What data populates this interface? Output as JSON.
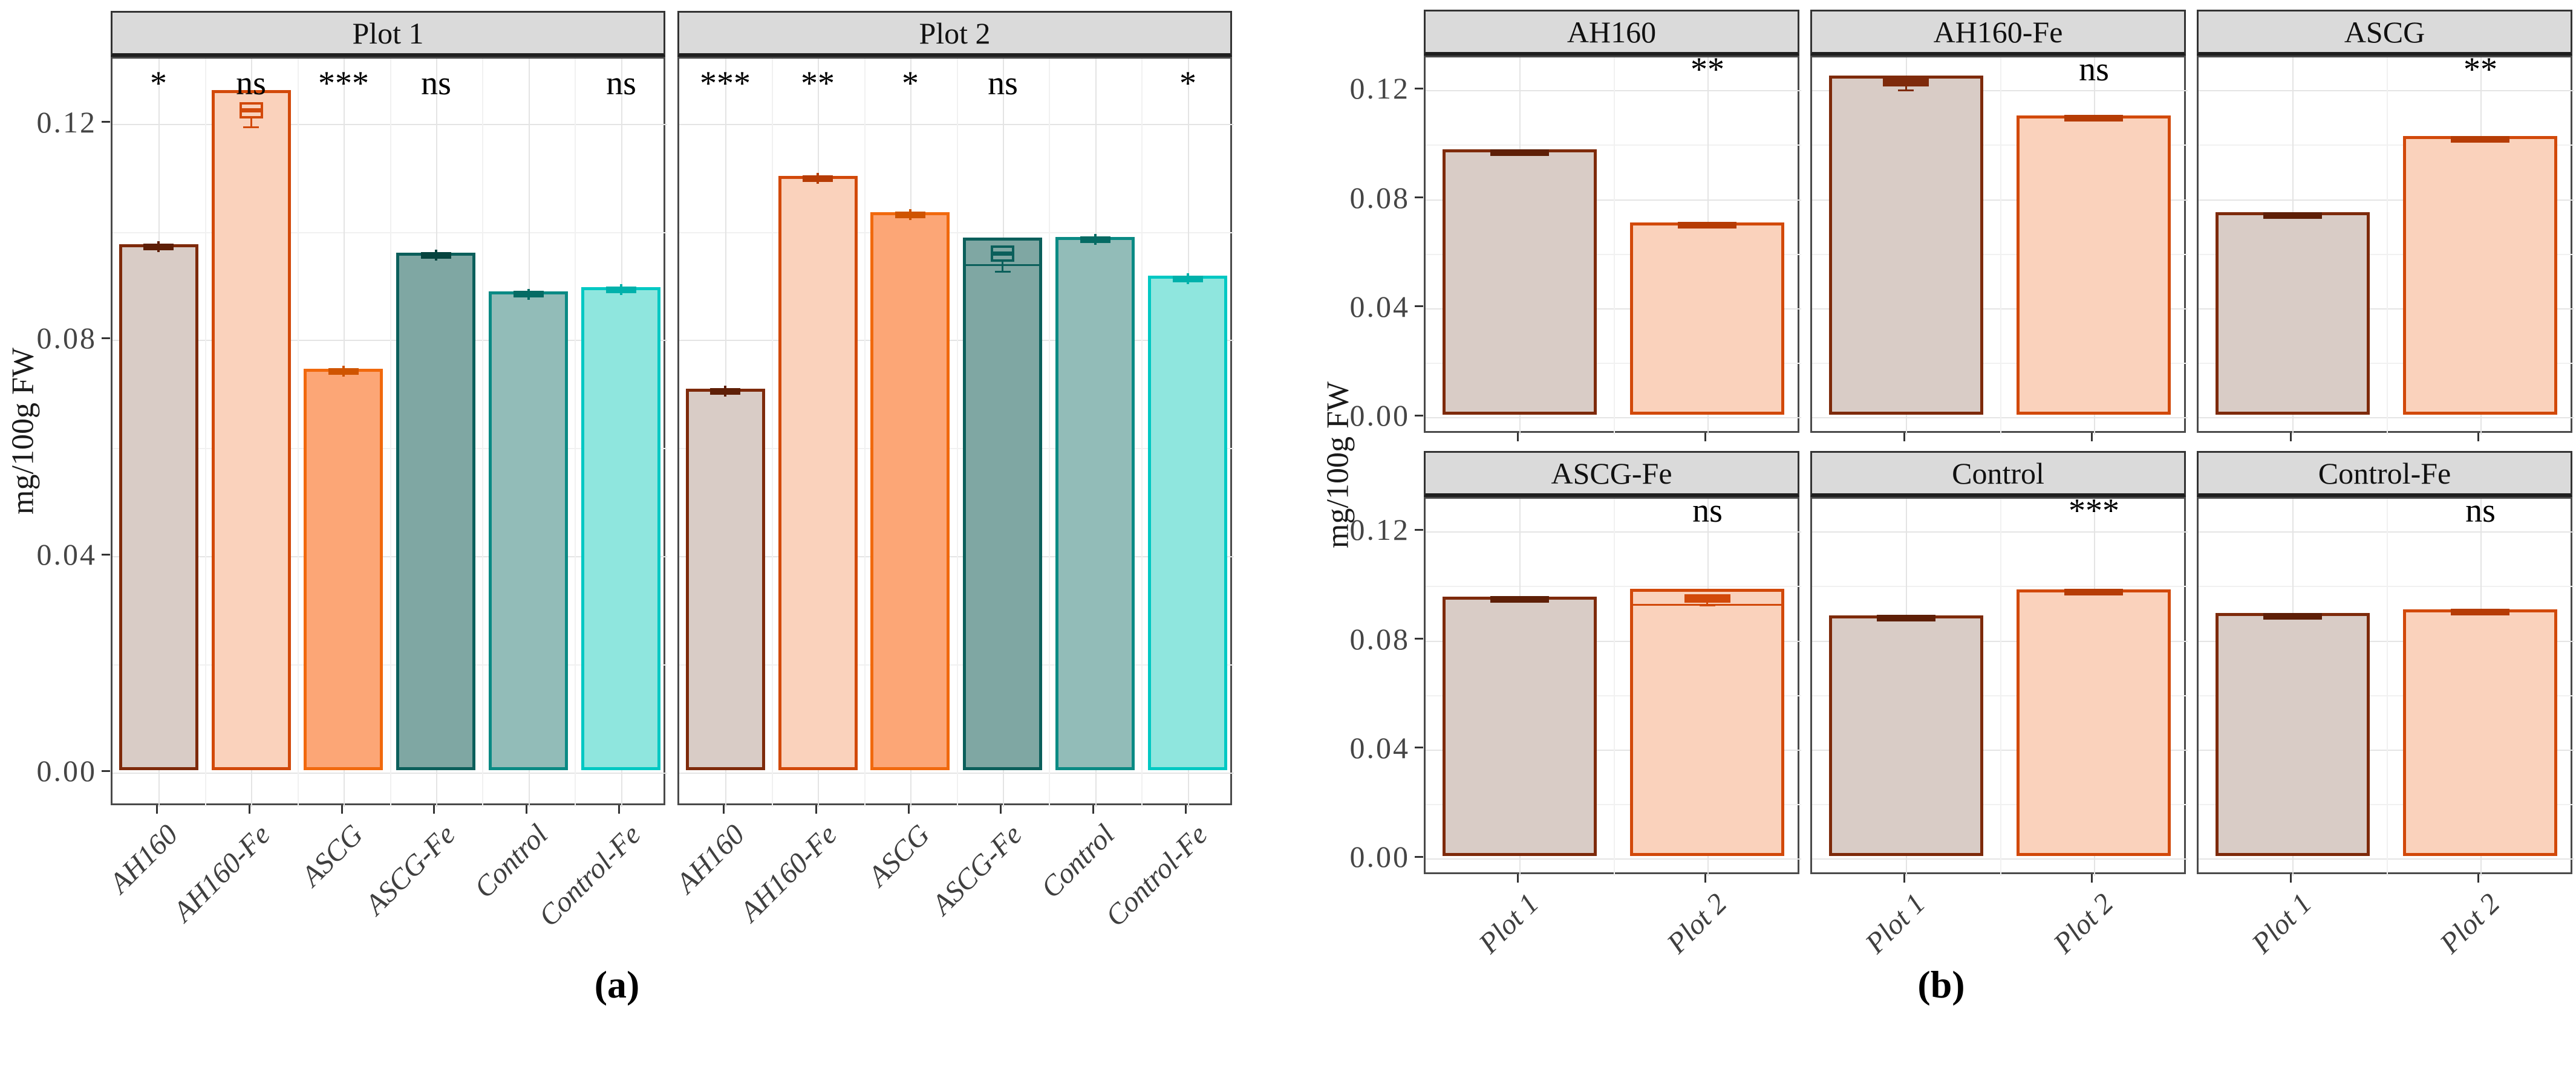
{
  "palette": {
    "AH160": {
      "fill": "#d9ccc6",
      "stroke": "#7e2a0b",
      "dark": "#5e1f07"
    },
    "AH160-Fe": {
      "fill": "#fad2bc",
      "stroke": "#d2490a",
      "dark": "#b63c05"
    },
    "ASCG": {
      "fill": "#fca676",
      "stroke": "#f1690d",
      "dark": "#cf5400"
    },
    "ASCG-Fe": {
      "fill": "#7fa7a3",
      "stroke": "#0b5f5b",
      "dark": "#07443f"
    },
    "Control": {
      "fill": "#92bcb8",
      "stroke": "#0a8a84",
      "dark": "#056b64"
    },
    "Control-Fe": {
      "fill": "#8fe6de",
      "stroke": "#00c8c3",
      "dark": "#00b1ab"
    }
  },
  "strip_bg": "#dadada",
  "grid_major": "#e4e4e4",
  "grid_minor": "#f1f1f1",
  "chart_data": [
    {
      "type": "bar",
      "title": "(a)",
      "ylabel": "mg/100g FW",
      "yticks": [
        0,
        0.04,
        0.08,
        0.12
      ],
      "ytick_labels": [
        "0.00",
        "0.04",
        "0.08",
        "0.12"
      ],
      "yminor": [
        0.02,
        0.06,
        0.1
      ],
      "ylim": [
        0,
        0.132
      ],
      "grid": true,
      "legend_position": "none",
      "facets": [
        "Plot 1",
        "Plot 2"
      ],
      "categories": [
        "AH160",
        "AH160-Fe",
        "ASCG",
        "ASCG-Fe",
        "Control",
        "Control-Fe"
      ],
      "series": [
        {
          "name": "Plot 1",
          "values": [
            0.0973,
            0.1258,
            0.0742,
            0.0957,
            0.0885,
            0.0893
          ],
          "significance": [
            "*",
            "ns",
            "***",
            "ns",
            "",
            "ns"
          ]
        },
        {
          "name": "Plot 2",
          "values": [
            0.0706,
            0.1099,
            0.1032,
            0.0985,
            0.0986,
            0.0914
          ],
          "significance": [
            "***",
            "**",
            "*",
            "ns",
            "",
            "*"
          ]
        }
      ],
      "error_bar": 0.001,
      "boxplots": [
        {
          "facet": "Plot 1",
          "category": "AH160-Fe",
          "box_low": 0.121,
          "box_high": 0.124,
          "median": 0.1225,
          "whisker_low": 0.1195
        },
        {
          "facet": "Plot 2",
          "category": "ASCG-Fe",
          "box_low": 0.0945,
          "box_high": 0.0975,
          "median": 0.096,
          "whisker_low": 0.0928,
          "wide_line": 0.094
        }
      ]
    },
    {
      "type": "bar",
      "title": "(b)",
      "ylabel": "mg/100g FW",
      "yticks": [
        0,
        0.04,
        0.08,
        0.12
      ],
      "ytick_labels": [
        "0.00",
        "0.04",
        "0.08",
        "0.12"
      ],
      "yminor": [
        0.02,
        0.06,
        0.1
      ],
      "ylim": [
        0,
        0.132
      ],
      "grid": true,
      "legend_position": "none",
      "facets": [
        "AH160",
        "AH160-Fe",
        "ASCG",
        "ASCG-Fe",
        "Control",
        "Control-Fe"
      ],
      "categories": [
        "Plot 1",
        "Plot 2"
      ],
      "values": {
        "AH160": [
          0.0973,
          0.0706
        ],
        "AH160-Fe": [
          0.1245,
          0.1099
        ],
        "ASCG": [
          0.0742,
          0.1022
        ],
        "ASCG-Fe": [
          0.0952,
          0.0981
        ],
        "Control": [
          0.0883,
          0.0979
        ],
        "Control-Fe": [
          0.0891,
          0.0906
        ]
      },
      "significance": {
        "AH160": "**",
        "AH160-Fe": "ns",
        "ASCG": "**",
        "ASCG-Fe": "ns",
        "Control": "***",
        "Control-Fe": "ns"
      },
      "bar_colors_by_category": {
        "Plot 1": "AH160",
        "Plot 2": "AH160-Fe"
      },
      "error_bar": 0.001,
      "boxplots": [
        {
          "facet": "AH160-Fe",
          "category": "Plot 1",
          "box_low": 0.1215,
          "box_high": 0.1245,
          "median": 0.1231,
          "whisker_low": 0.1203
        },
        {
          "facet": "ASCG-Fe",
          "category": "Plot 2",
          "box_low": 0.094,
          "box_high": 0.097,
          "median": 0.0955,
          "whisker_low": 0.0932,
          "wide_line": 0.0935
        }
      ]
    }
  ]
}
